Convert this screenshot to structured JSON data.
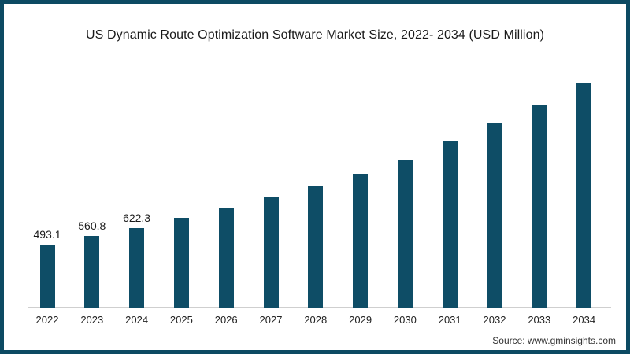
{
  "page": {
    "border_color": "#0d4a63",
    "background_color": "#ffffff"
  },
  "chart_data": {
    "type": "bar",
    "title": "US Dynamic Route Optimization Software Market Size, 2022- 2034 (USD Million)",
    "xlabel": "",
    "ylabel": "",
    "categories": [
      "2022",
      "2023",
      "2024",
      "2025",
      "2026",
      "2027",
      "2028",
      "2029",
      "2030",
      "2031",
      "2032",
      "2033",
      "2034"
    ],
    "values": [
      493.1,
      560.8,
      622.3,
      700,
      780,
      860,
      947,
      1045,
      1156,
      1300,
      1440,
      1580,
      1756
    ],
    "data_labels": {
      "2022": "493.1",
      "2023": "560.8",
      "2024": "622.3"
    },
    "bar_color": "#0e4d66",
    "axis_line_color": "#cfcfcf",
    "grid": "off",
    "legend": "none",
    "ylim": [
      0,
      1900
    ],
    "source": "Source: www.gminsights.com"
  }
}
